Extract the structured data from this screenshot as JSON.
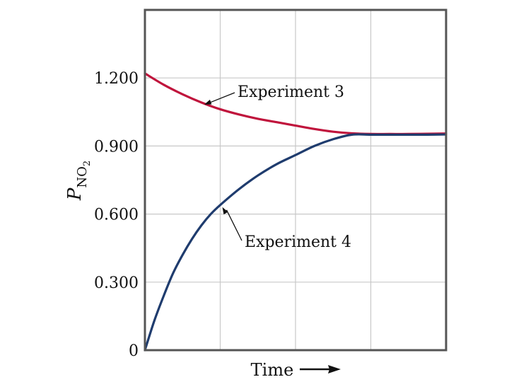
{
  "chart_data": {
    "type": "line",
    "title": "",
    "xlabel": "Time",
    "ylabel": {
      "main": "P",
      "subscript": "NO",
      "sub_subscript": "2"
    },
    "x_arrow": true,
    "ylim": [
      0,
      1.5
    ],
    "yticks": [
      {
        "value": 0,
        "label": "0"
      },
      {
        "value": 0.3,
        "label": "0.300"
      },
      {
        "value": 0.6,
        "label": "0.600"
      },
      {
        "value": 0.9,
        "label": "0.900"
      },
      {
        "value": 1.2,
        "label": "1.200"
      }
    ],
    "grid": true,
    "series": [
      {
        "name": "Experiment 3",
        "color": "#c0143c",
        "x": [
          0,
          0.5,
          1,
          1.5,
          2,
          2.5,
          3,
          3.5,
          4,
          4.5,
          5,
          5.5,
          6,
          6.5,
          7,
          7.5,
          8
        ],
        "y": [
          1.22,
          1.17,
          1.128,
          1.092,
          1.062,
          1.039,
          1.02,
          1.005,
          0.99,
          0.975,
          0.963,
          0.956,
          0.953,
          0.953,
          0.953,
          0.954,
          0.955
        ]
      },
      {
        "name": "Experiment 4",
        "color": "#1f3c6e",
        "x": [
          0,
          0.25,
          0.5,
          0.75,
          1,
          1.25,
          1.5,
          1.75,
          2,
          2.5,
          3,
          3.5,
          4,
          4.5,
          5,
          5.5,
          6,
          6.5,
          7,
          7.5,
          8
        ],
        "y": [
          0,
          0.13,
          0.24,
          0.34,
          0.42,
          0.49,
          0.55,
          0.6,
          0.64,
          0.71,
          0.77,
          0.82,
          0.86,
          0.9,
          0.93,
          0.95,
          0.95,
          0.95,
          0.95,
          0.95,
          0.951
        ]
      }
    ],
    "annotations": [
      {
        "text": "Experiment 3",
        "series": 0,
        "x": 1.5,
        "y": 1.092
      },
      {
        "text": "Experiment 4",
        "series": 1,
        "x": 2,
        "y": 0.64
      }
    ]
  }
}
